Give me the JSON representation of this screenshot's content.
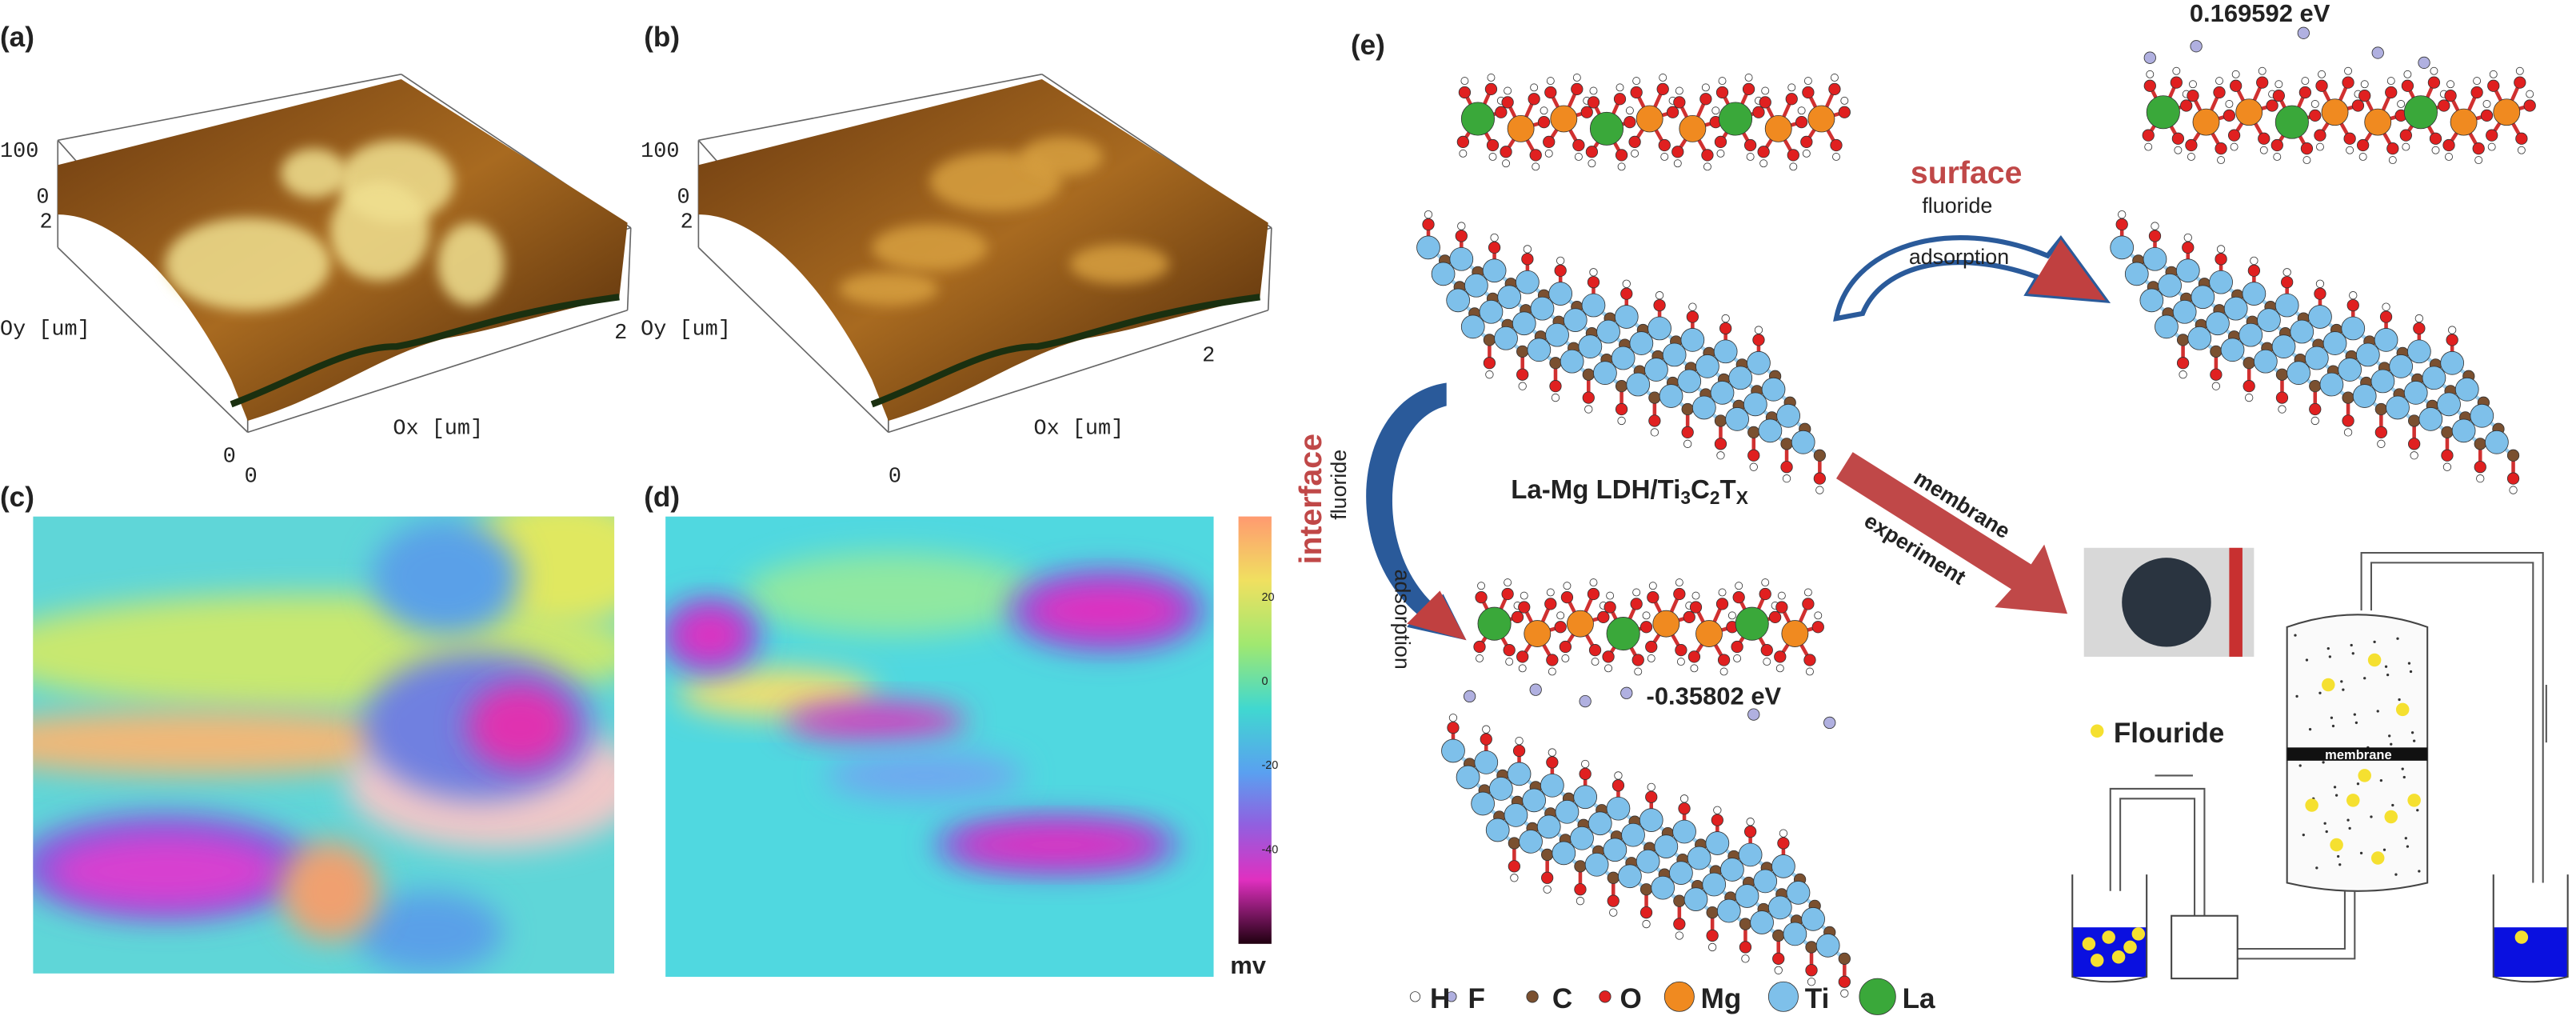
{
  "panel_a": {
    "label": "(a)",
    "z_top": "100",
    "z_zero": "0",
    "y_tick": "2",
    "y_label": "Oy [um]",
    "x_label": "Ox [um]",
    "x_tick": "2",
    "origin_z": "0",
    "origin_x": "0"
  },
  "panel_b": {
    "label": "(b)",
    "z_top": "100",
    "z_zero": "0",
    "y_tick": "2",
    "y_label": "Oy [um]",
    "x_label": "Ox [um]",
    "x_tick": "2",
    "origin_x": "0"
  },
  "panel_c": {
    "label": "(c)"
  },
  "panel_d": {
    "label": "(d)",
    "colorbar": {
      "ticks": [
        "20",
        "0",
        "-20",
        "-40"
      ],
      "unit": "mv"
    }
  },
  "panel_e": {
    "label": "(e)",
    "energy_surface": "0.169592 eV",
    "energy_interface": "-0.35802 eV",
    "surface": {
      "title": "surface",
      "line1": "fluoride",
      "line2": "adsorption"
    },
    "interface": {
      "title": "interface",
      "line1": "fluoride",
      "line2": "adsorption"
    },
    "formula": [
      "La-Mg LDH/Ti",
      "3",
      "C",
      "2",
      "T",
      "X"
    ],
    "membrane_arrow": [
      "membrane",
      "experiment"
    ],
    "fluoride_legend": "Flouride",
    "membrane_label": "membrane",
    "legend": [
      "H",
      "F",
      "C",
      "O",
      "Mg",
      "Ti",
      "La"
    ]
  }
}
